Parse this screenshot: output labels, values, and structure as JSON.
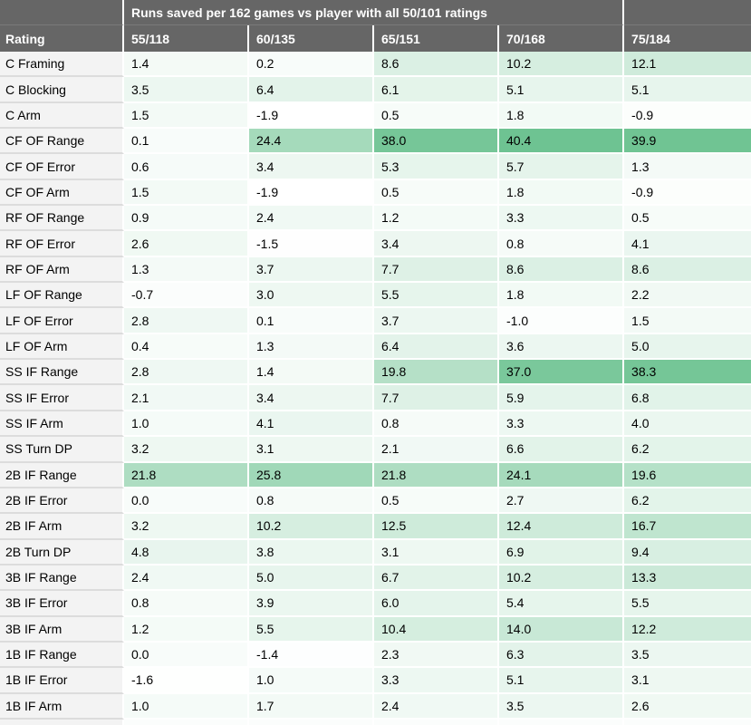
{
  "chart_data": {
    "type": "heatmap",
    "title": "Runs saved per 162 games vs player with all 50/101 ratings",
    "row_header_label": "Rating",
    "columns": [
      "55/118",
      "60/135",
      "65/151",
      "70/168",
      "75/184"
    ],
    "rows": [
      {
        "label": "C Framing",
        "values": [
          "1.4",
          "0.2",
          "8.6",
          "10.2",
          "12.1"
        ]
      },
      {
        "label": "C Blocking",
        "values": [
          "3.5",
          "6.4",
          "6.1",
          "5.1",
          "5.1"
        ]
      },
      {
        "label": "C Arm",
        "values": [
          "1.5",
          "-1.9",
          "0.5",
          "1.8",
          "-0.9"
        ]
      },
      {
        "label": "CF OF Range",
        "values": [
          "0.1",
          "24.4",
          "38.0",
          "40.4",
          "39.9"
        ]
      },
      {
        "label": "CF OF Error",
        "values": [
          "0.6",
          "3.4",
          "5.3",
          "5.7",
          "1.3"
        ]
      },
      {
        "label": "CF OF Arm",
        "values": [
          "1.5",
          "-1.9",
          "0.5",
          "1.8",
          "-0.9"
        ]
      },
      {
        "label": "RF OF Range",
        "values": [
          "0.9",
          "2.4",
          "1.2",
          "3.3",
          "0.5"
        ]
      },
      {
        "label": "RF OF Error",
        "values": [
          "2.6",
          "-1.5",
          "3.4",
          "0.8",
          "4.1"
        ]
      },
      {
        "label": "RF OF Arm",
        "values": [
          "1.3",
          "3.7",
          "7.7",
          "8.6",
          "8.6"
        ]
      },
      {
        "label": "LF OF Range",
        "values": [
          "-0.7",
          "3.0",
          "5.5",
          "1.8",
          "2.2"
        ]
      },
      {
        "label": "LF OF Error",
        "values": [
          "2.8",
          "0.1",
          "3.7",
          "-1.0",
          "1.5"
        ]
      },
      {
        "label": "LF OF Arm",
        "values": [
          "0.4",
          "1.3",
          "6.4",
          "3.6",
          "5.0"
        ]
      },
      {
        "label": "SS IF Range",
        "values": [
          "2.8",
          "1.4",
          "19.8",
          "37.0",
          "38.3"
        ]
      },
      {
        "label": "SS IF Error",
        "values": [
          "2.1",
          "3.4",
          "7.7",
          "5.9",
          "6.8"
        ]
      },
      {
        "label": "SS IF Arm",
        "values": [
          "1.0",
          "4.1",
          "0.8",
          "3.3",
          "4.0"
        ]
      },
      {
        "label": "SS Turn DP",
        "values": [
          "3.2",
          "3.1",
          "2.1",
          "6.6",
          "6.2"
        ]
      },
      {
        "label": "2B IF Range",
        "values": [
          "21.8",
          "25.8",
          "21.8",
          "24.1",
          "19.6"
        ]
      },
      {
        "label": "2B IF Error",
        "values": [
          "0.0",
          "0.8",
          "0.5",
          "2.7",
          "6.2"
        ]
      },
      {
        "label": "2B IF Arm",
        "values": [
          "3.2",
          "10.2",
          "12.5",
          "12.4",
          "16.7"
        ]
      },
      {
        "label": "2B Turn DP",
        "values": [
          "4.8",
          "3.8",
          "3.1",
          "6.9",
          "9.4"
        ]
      },
      {
        "label": "3B IF Range",
        "values": [
          "2.4",
          "5.0",
          "6.7",
          "10.2",
          "13.3"
        ]
      },
      {
        "label": "3B IF Error",
        "values": [
          "0.8",
          "3.9",
          "6.0",
          "5.4",
          "5.5"
        ]
      },
      {
        "label": "3B IF Arm",
        "values": [
          "1.2",
          "5.5",
          "10.4",
          "14.0",
          "12.2"
        ]
      },
      {
        "label": "1B IF Range",
        "values": [
          "0.0",
          "-1.4",
          "2.3",
          "6.3",
          "3.5"
        ]
      },
      {
        "label": "1B IF Error",
        "values": [
          "-1.6",
          "1.0",
          "3.3",
          "5.1",
          "3.1"
        ]
      },
      {
        "label": "1B IF Arm",
        "values": [
          "1.0",
          "1.7",
          "2.4",
          "3.5",
          "2.6"
        ]
      }
    ],
    "color_scale": {
      "min_value": -1.9,
      "max_value": 40.4,
      "min_color": "#ffffff",
      "max_color": "#6ec392"
    },
    "layout": {
      "legend": "none",
      "grid": "white-cell-separators",
      "value_alignment": "left"
    }
  },
  "colors": {
    "header_bg": "#666666",
    "header_text": "#ffffff",
    "label_column_bg": "#f3f3f3",
    "body_text": "#000000",
    "label_row_divider": "#dcdcdc"
  }
}
